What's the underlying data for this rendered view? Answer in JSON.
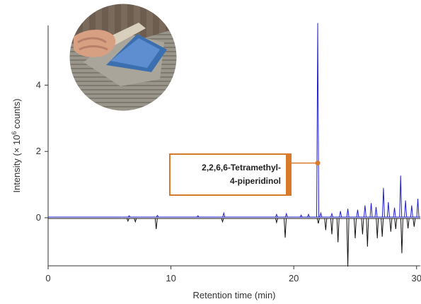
{
  "chart_data": {
    "type": "line",
    "xlabel": "Retention time (min)",
    "ylabel_main": "Intensity (× 10",
    "ylabel_sup": "6",
    "ylabel_tail": " counts)",
    "xlim": [
      0,
      30.3
    ],
    "ylim": [
      -1.45,
      5.8
    ],
    "x_ticks": [
      0,
      10,
      20,
      30
    ],
    "y_ticks": [
      0,
      2,
      4
    ],
    "series": [
      {
        "color": "#1f1fd0",
        "direction": "up",
        "peaks": [
          {
            "x": 6.6,
            "y": 0.04
          },
          {
            "x": 8.9,
            "y": 0.05
          },
          {
            "x": 12.2,
            "y": 0.04
          },
          {
            "x": 14.3,
            "y": 0.12
          },
          {
            "x": 18.6,
            "y": 0.08
          },
          {
            "x": 19.4,
            "y": 0.1
          },
          {
            "x": 20.6,
            "y": 0.06
          },
          {
            "x": 21.2,
            "y": 0.08
          },
          {
            "x": 21.95,
            "y": 5.85
          },
          {
            "x": 22.2,
            "y": 0.12
          },
          {
            "x": 23.1,
            "y": 0.1
          },
          {
            "x": 23.8,
            "y": 0.18
          },
          {
            "x": 24.4,
            "y": 0.25
          },
          {
            "x": 25.2,
            "y": 0.22
          },
          {
            "x": 25.8,
            "y": 0.35
          },
          {
            "x": 26.3,
            "y": 0.42
          },
          {
            "x": 26.7,
            "y": 0.3
          },
          {
            "x": 27.3,
            "y": 0.88
          },
          {
            "x": 27.7,
            "y": 0.45
          },
          {
            "x": 28.2,
            "y": 0.28
          },
          {
            "x": 28.7,
            "y": 1.25
          },
          {
            "x": 29.1,
            "y": 0.5
          },
          {
            "x": 29.6,
            "y": 0.35
          },
          {
            "x": 30.1,
            "y": 0.55
          }
        ]
      },
      {
        "color": "#111111",
        "direction": "down",
        "peaks": [
          {
            "x": 6.5,
            "y": -0.08
          },
          {
            "x": 7.1,
            "y": -0.1
          },
          {
            "x": 8.8,
            "y": -0.32
          },
          {
            "x": 14.2,
            "y": -0.1
          },
          {
            "x": 18.6,
            "y": -0.12
          },
          {
            "x": 19.3,
            "y": -0.58
          },
          {
            "x": 22.0,
            "y": -0.15
          },
          {
            "x": 22.6,
            "y": -0.35
          },
          {
            "x": 23.1,
            "y": -0.48
          },
          {
            "x": 23.6,
            "y": -0.72
          },
          {
            "x": 24.4,
            "y": -1.45
          },
          {
            "x": 25.0,
            "y": -0.6
          },
          {
            "x": 25.6,
            "y": -0.48
          },
          {
            "x": 26.0,
            "y": -0.85
          },
          {
            "x": 26.8,
            "y": -0.6
          },
          {
            "x": 27.2,
            "y": -0.55
          },
          {
            "x": 27.9,
            "y": -0.4
          },
          {
            "x": 28.3,
            "y": -0.32
          },
          {
            "x": 28.8,
            "y": -1.05
          },
          {
            "x": 29.3,
            "y": -0.3
          },
          {
            "x": 29.8,
            "y": -0.25
          }
        ]
      }
    ],
    "annotation": {
      "line1": "2,2,6,6-Tetramethyl-",
      "line2": "4-piperidinol",
      "x": 21.95,
      "y": 1.65,
      "color": "#d97a2b"
    }
  },
  "photo": {
    "name": "tile-adhesive-trowel-photo"
  }
}
